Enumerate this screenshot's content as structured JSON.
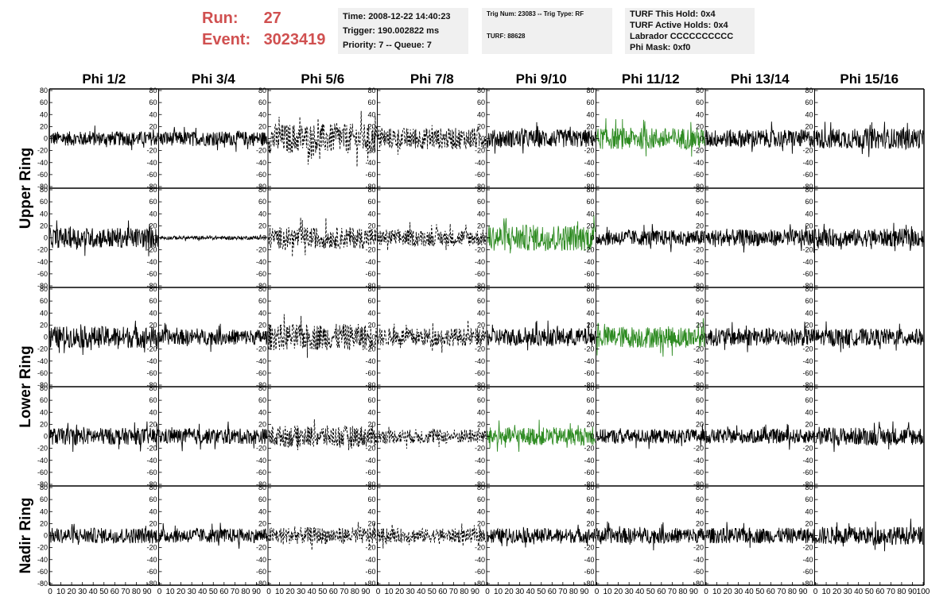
{
  "header": {
    "run_label": "Run:",
    "run_value": "27",
    "event_label": "Event:",
    "event_value": "3023419"
  },
  "info_box_1": {
    "time": "Time: 2008-12-22 14:40:23",
    "trigger": "Trigger: 190.002822 ms",
    "priority": "Priority: 7 -- Queue: 7"
  },
  "info_box_2": {
    "trig_line": "Trig Num: 23083 -- Trig Type: RF",
    "turf_line": "TURF: 88628"
  },
  "info_box_3": {
    "this_hold": "TURF This Hold: 0x4",
    "active_holds": "TURF Active Holds: 0x4",
    "labrador": "Labrador CCCCCCCCCC",
    "phi_mask": "Phi Mask: 0xf0"
  },
  "chart_data": {
    "type": "line",
    "columns": [
      "Phi 1/2",
      "Phi 3/4",
      "Phi 5/6",
      "Phi 7/8",
      "Phi 9/10",
      "Phi 11/12",
      "Phi 13/14",
      "Phi 15/16"
    ],
    "ring_labels": [
      {
        "label": "Upper Ring",
        "rows": [
          0,
          1
        ]
      },
      {
        "label": "Lower Ring",
        "rows": [
          2,
          3
        ]
      },
      {
        "label": "Nadir Ring",
        "rows": [
          4
        ]
      }
    ],
    "xlim": [
      0,
      100
    ],
    "ylim": [
      -80,
      80
    ],
    "y_ticks": [
      "80",
      "60",
      "40",
      "20",
      "0",
      "-20",
      "-40",
      "-60",
      "-80"
    ],
    "x_ticks": [
      "0",
      "10",
      "20",
      "30",
      "40",
      "50",
      "60",
      "70",
      "80",
      "90",
      "100"
    ],
    "colors": {
      "normal": "#000000",
      "triggered": "#2e8b22"
    },
    "rows": [
      {
        "panels": [
          {
            "amplitude": 12,
            "style": "solid",
            "color": "normal"
          },
          {
            "amplitude": 12,
            "style": "solid",
            "color": "normal"
          },
          {
            "amplitude": 25,
            "style": "dashed",
            "color": "normal"
          },
          {
            "amplitude": 18,
            "style": "dashed",
            "color": "normal"
          },
          {
            "amplitude": 15,
            "style": "solid",
            "color": "normal"
          },
          {
            "amplitude": 18,
            "style": "solid",
            "color": "triggered"
          },
          {
            "amplitude": 15,
            "style": "solid",
            "color": "normal"
          },
          {
            "amplitude": 17,
            "style": "solid",
            "color": "normal"
          }
        ]
      },
      {
        "panels": [
          {
            "amplitude": 17,
            "style": "solid",
            "color": "normal"
          },
          {
            "amplitude": 3,
            "style": "solid",
            "color": "normal"
          },
          {
            "amplitude": 18,
            "style": "dashed",
            "color": "normal"
          },
          {
            "amplitude": 14,
            "style": "dashed",
            "color": "normal"
          },
          {
            "amplitude": 22,
            "style": "solid",
            "color": "triggered"
          },
          {
            "amplitude": 13,
            "style": "solid",
            "color": "normal"
          },
          {
            "amplitude": 14,
            "style": "solid",
            "color": "normal"
          },
          {
            "amplitude": 15,
            "style": "solid",
            "color": "normal"
          }
        ]
      },
      {
        "panels": [
          {
            "amplitude": 18,
            "style": "solid",
            "color": "normal"
          },
          {
            "amplitude": 13,
            "style": "solid",
            "color": "normal"
          },
          {
            "amplitude": 22,
            "style": "dashed",
            "color": "normal"
          },
          {
            "amplitude": 15,
            "style": "dashed",
            "color": "normal"
          },
          {
            "amplitude": 15,
            "style": "solid",
            "color": "normal"
          },
          {
            "amplitude": 18,
            "style": "solid",
            "color": "triggered"
          },
          {
            "amplitude": 15,
            "style": "solid",
            "color": "normal"
          },
          {
            "amplitude": 14,
            "style": "solid",
            "color": "normal"
          }
        ]
      },
      {
        "panels": [
          {
            "amplitude": 14,
            "style": "solid",
            "color": "normal"
          },
          {
            "amplitude": 13,
            "style": "solid",
            "color": "normal"
          },
          {
            "amplitude": 18,
            "style": "dashed",
            "color": "normal"
          },
          {
            "amplitude": 12,
            "style": "dashed",
            "color": "normal"
          },
          {
            "amplitude": 15,
            "style": "solid",
            "color": "triggered"
          },
          {
            "amplitude": 12,
            "style": "solid",
            "color": "normal"
          },
          {
            "amplitude": 12,
            "style": "solid",
            "color": "normal"
          },
          {
            "amplitude": 15,
            "style": "solid",
            "color": "normal"
          }
        ]
      },
      {
        "panels": [
          {
            "amplitude": 13,
            "style": "solid",
            "color": "normal"
          },
          {
            "amplitude": 12,
            "style": "solid",
            "color": "normal"
          },
          {
            "amplitude": 14,
            "style": "dashed",
            "color": "normal"
          },
          {
            "amplitude": 12,
            "style": "dashed",
            "color": "normal"
          },
          {
            "amplitude": 12,
            "style": "solid",
            "color": "normal"
          },
          {
            "amplitude": 13,
            "style": "solid",
            "color": "normal"
          },
          {
            "amplitude": 13,
            "style": "solid",
            "color": "normal"
          },
          {
            "amplitude": 15,
            "style": "solid",
            "color": "normal"
          }
        ]
      }
    ]
  }
}
